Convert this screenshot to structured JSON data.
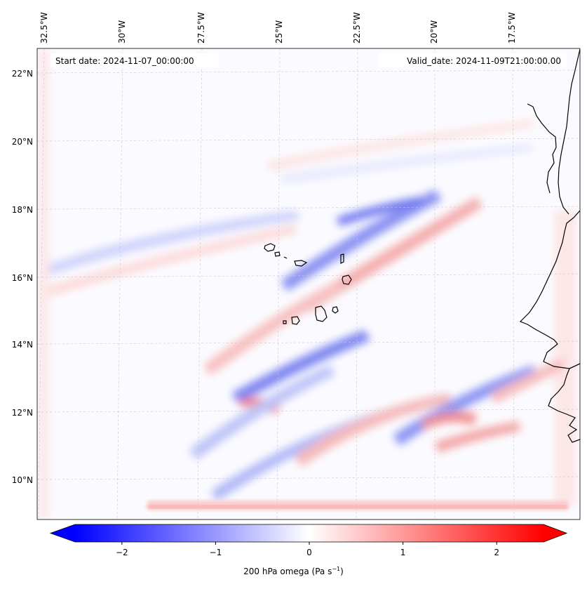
{
  "header": {
    "start_date": "Start date: 2024-11-07_00:00:00",
    "valid_date": "Valid_date: 2024-11-09T21:00:00.00"
  },
  "map": {
    "longitude_labels": [
      "32.5°W",
      "30°W",
      "27.5°W",
      "25°W",
      "22.5°W",
      "20°W",
      "17.5°W"
    ],
    "latitude_labels": [
      "22°N",
      "20°N",
      "18°N",
      "16°N",
      "14°N",
      "12°N",
      "10°N"
    ],
    "gridlines": true,
    "field": "200 hPa omega",
    "colormap": "bwr",
    "colors": {
      "negative": "#0000ff",
      "neutral": "#ffffff",
      "positive": "#ff0000",
      "coastline": "#000000"
    }
  },
  "colorbar": {
    "ticks": [
      "−2",
      "−1",
      "0",
      "1",
      "2"
    ],
    "tick_values": [
      -2,
      -1,
      0,
      1,
      2
    ],
    "range": [
      -2.5,
      2.5
    ],
    "label_main": "200 hPa omega (Pa s",
    "label_sup": "−1",
    "label_close": ")",
    "extend": "both"
  }
}
